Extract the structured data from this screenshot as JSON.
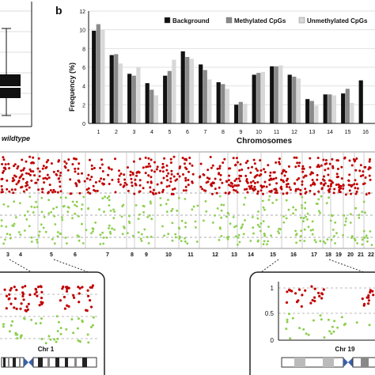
{
  "panel_labels": {
    "b": "b"
  },
  "boxplot": {
    "label": "wildtype"
  },
  "chart_data": [
    {
      "type": "bar",
      "ylabel": "Frequency (%)",
      "xlabel": "Chromosomes",
      "ylim": [
        0,
        12
      ],
      "yticks": [
        0,
        2,
        4,
        6,
        8,
        10,
        12
      ],
      "categories": [
        "1",
        "2",
        "3",
        "4",
        "5",
        "6",
        "7",
        "8",
        "9",
        "10",
        "11",
        "12",
        "13",
        "14",
        "15",
        "16"
      ],
      "series": [
        {
          "name": "Background",
          "color": "#111111",
          "values": [
            9.9,
            7.3,
            5.3,
            4.3,
            5.1,
            7.7,
            6.3,
            4.4,
            2.0,
            5.2,
            6.1,
            5.2,
            2.6,
            3.1,
            3.2,
            4.6
          ]
        },
        {
          "name": "Methylated CpGs",
          "color": "#8a8a8a",
          "values": [
            10.6,
            7.4,
            5.1,
            3.6,
            5.6,
            7.1,
            5.7,
            4.2,
            2.3,
            5.4,
            6.1,
            5.0,
            2.4,
            3.1,
            3.7,
            null
          ]
        },
        {
          "name": "Unmethylated CpGs",
          "color": "#d8d8d8",
          "values": [
            10.0,
            6.4,
            6.0,
            3.0,
            6.8,
            6.9,
            4.7,
            3.7,
            2.1,
            5.5,
            6.2,
            4.8,
            1.9,
            3.0,
            2.2,
            null
          ]
        }
      ],
      "legend_position": "top",
      "grid": true
    },
    {
      "type": "scatter",
      "x_tick_labels": [
        "3",
        "4",
        "5",
        "6",
        "7",
        "8",
        "9",
        "10",
        "11",
        "12",
        "13",
        "14",
        "15",
        "16",
        "17",
        "18",
        "19",
        "20",
        "21",
        "22"
      ]
    },
    {
      "type": "scatter",
      "ylabel_ticks": [],
      "xlabel": "Chr 1"
    },
    {
      "type": "scatter",
      "yticks": [
        "0",
        "0.5",
        "1"
      ],
      "ylim": [
        0,
        1
      ],
      "xlabel": "Chr 19"
    }
  ]
}
